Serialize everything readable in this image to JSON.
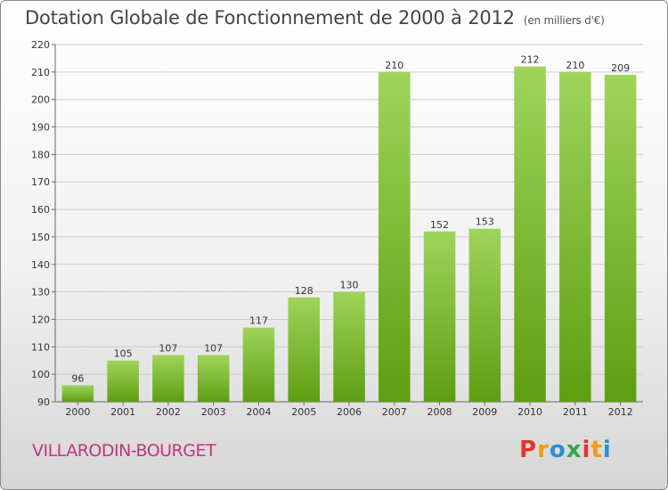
{
  "title": "Dotation Globale de Fonctionnement de 2000 à 2012",
  "subtitle": "(en milliers d'€)",
  "commune": "VILLARODIN-BOURGET",
  "logo": {
    "letters": [
      "P",
      "r",
      "o",
      "x",
      "i",
      "t",
      "i"
    ]
  },
  "colors": {
    "bar_top": "#9fd45a",
    "bar_bottom": "#5e9e12",
    "grid": "#cccccc",
    "title": "#444444",
    "commune": "#c2347e"
  },
  "chart_data": {
    "type": "bar",
    "categories": [
      "2000",
      "2001",
      "2002",
      "2003",
      "2004",
      "2005",
      "2006",
      "2007",
      "2008",
      "2009",
      "2010",
      "2011",
      "2012"
    ],
    "values": [
      96,
      105,
      107,
      107,
      117,
      128,
      130,
      210,
      152,
      153,
      212,
      210,
      209
    ],
    "ylim": [
      90,
      220
    ],
    "yticks": [
      90,
      100,
      110,
      120,
      130,
      140,
      150,
      160,
      170,
      180,
      190,
      200,
      210,
      220
    ],
    "grid": true
  }
}
